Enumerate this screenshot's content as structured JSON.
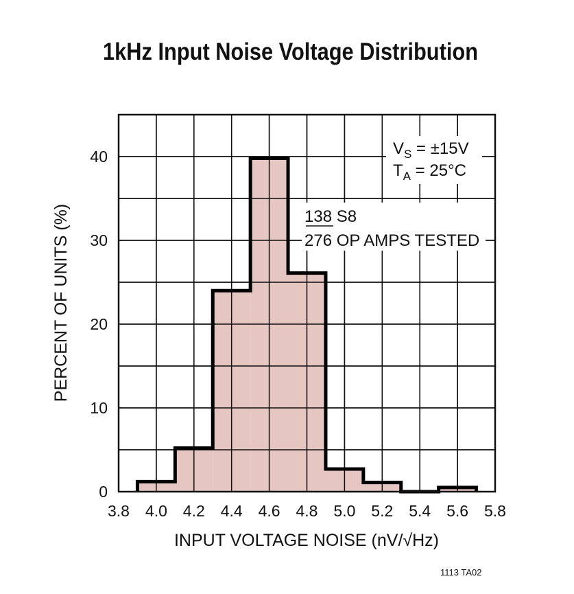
{
  "chart_data": {
    "type": "bar",
    "title": "1kHz Input Noise Voltage Distribution",
    "xlabel": "INPUT VOLTAGE NOISE (nV/√Hz)",
    "ylabel": "PERCENT OF UNITS (%)",
    "xlim": [
      3.8,
      5.8
    ],
    "ylim": [
      0,
      45
    ],
    "x_ticks": [
      "3.8",
      "4.0",
      "4.2",
      "4.4",
      "4.6",
      "4.8",
      "5.0",
      "5.2",
      "5.4",
      "5.6",
      "5.8"
    ],
    "y_ticks": [
      "0",
      "10",
      "20",
      "30",
      "40"
    ],
    "grid": true,
    "bin_edges": [
      3.9,
      4.1,
      4.3,
      4.5,
      4.7,
      4.9,
      5.1,
      5.3,
      5.5,
      5.7
    ],
    "values": [
      1.2,
      5.2,
      24.0,
      39.8,
      26.1,
      2.7,
      1.1,
      0,
      0.5
    ],
    "fill_color": "#e4c3bd",
    "annotations": {
      "vs": "V",
      "vs_sub": "S",
      "vs_val": " = ±15V",
      "ta": "T",
      "ta_sub": "A",
      "ta_val": " = 25°C",
      "numerator": "138",
      "numerator_suffix": " S8",
      "denominator_line": "276 OP AMPS TESTED"
    }
  },
  "footer": "1113 TA02"
}
